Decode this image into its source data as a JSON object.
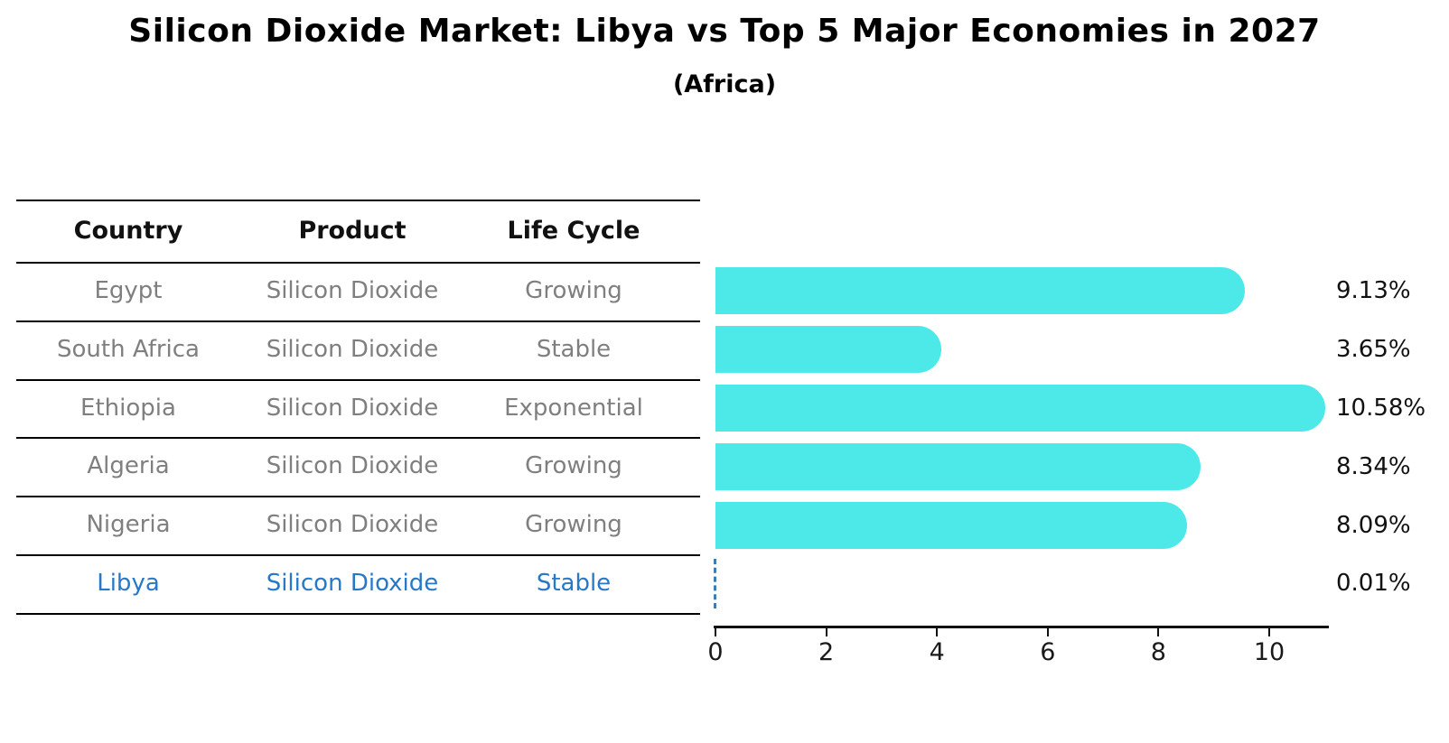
{
  "title": "Silicon Dioxide Market: Libya vs Top 5 Major Economies in 2027",
  "subtitle": "(Africa)",
  "table": {
    "headers": [
      "Country",
      "Product",
      "Life Cycle"
    ],
    "rows": [
      {
        "country": "Egypt",
        "product": "Silicon Dioxide",
        "life_cycle": "Growing",
        "highlighted": false
      },
      {
        "country": "South Africa",
        "product": "Silicon Dioxide",
        "life_cycle": "Stable",
        "highlighted": false
      },
      {
        "country": "Ethiopia",
        "product": "Silicon Dioxide",
        "life_cycle": "Exponential",
        "highlighted": false
      },
      {
        "country": "Algeria",
        "product": "Silicon Dioxide",
        "life_cycle": "Growing",
        "highlighted": false
      },
      {
        "country": "Nigeria",
        "product": "Silicon Dioxide",
        "life_cycle": "Growing",
        "highlighted": false
      },
      {
        "country": "Libya",
        "product": "Silicon Dioxide",
        "life_cycle": "Stable",
        "highlighted": true
      }
    ]
  },
  "chart_data": {
    "type": "bar",
    "orientation": "horizontal",
    "title": "Silicon Dioxide Market: Libya vs Top 5 Major Economies in 2027",
    "subtitle": "(Africa)",
    "categories": [
      "Egypt",
      "South Africa",
      "Ethiopia",
      "Algeria",
      "Nigeria",
      "Libya"
    ],
    "values": [
      9.13,
      3.65,
      10.58,
      8.34,
      8.09,
      0.01
    ],
    "value_labels": [
      "9.13%",
      "3.65%",
      "10.58%",
      "8.34%",
      "8.09%",
      "0.01%"
    ],
    "highlight_index": 5,
    "x_tick_values": [
      0,
      2,
      4,
      6,
      8,
      10
    ],
    "x_tick_labels": [
      "0",
      "2",
      "4",
      "6",
      "8",
      "10"
    ],
    "xlim": [
      0,
      11.1
    ],
    "grid": false,
    "legend": false,
    "xlabel": "",
    "ylabel": ""
  },
  "colors": {
    "bar": "#4DE8E8",
    "highlight_blue": "#2878C8",
    "dashed_outline": "#3E7CB1",
    "row_text": "#7F7F7F",
    "header_text": "#111111",
    "axis": "#111111",
    "background": "#FFFFFF"
  }
}
